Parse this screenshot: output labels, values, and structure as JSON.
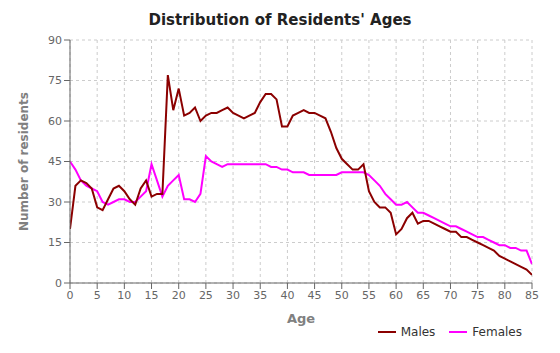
{
  "chart_data": {
    "type": "line",
    "title": "Distribution of Residents' Ages",
    "x_label": "Age",
    "y_label": "Number of residents",
    "x": [
      0,
      1,
      2,
      3,
      4,
      5,
      6,
      7,
      8,
      9,
      10,
      11,
      12,
      13,
      14,
      15,
      16,
      17,
      18,
      19,
      20,
      21,
      22,
      23,
      24,
      25,
      26,
      27,
      28,
      29,
      30,
      31,
      32,
      33,
      34,
      35,
      36,
      37,
      38,
      39,
      40,
      41,
      42,
      43,
      44,
      45,
      46,
      47,
      48,
      49,
      50,
      51,
      52,
      53,
      54,
      55,
      56,
      57,
      58,
      59,
      60,
      61,
      62,
      63,
      64,
      65,
      66,
      67,
      68,
      69,
      70,
      71,
      72,
      73,
      74,
      75,
      76,
      77,
      78,
      79,
      80,
      81,
      82,
      83,
      84,
      85
    ],
    "series": [
      {
        "name": "Males",
        "color": "#8B0000",
        "values": [
          20,
          36,
          38,
          37,
          35,
          28,
          27,
          31,
          35,
          36,
          34,
          31,
          29,
          35,
          38,
          32,
          33,
          33,
          77,
          64,
          72,
          62,
          63,
          65,
          60,
          62,
          63,
          63,
          64,
          65,
          63,
          62,
          61,
          62,
          63,
          67,
          70,
          70,
          68,
          58,
          58,
          62,
          63,
          64,
          63,
          63,
          62,
          61,
          56,
          50,
          46,
          44,
          42,
          42,
          44,
          34,
          30,
          28,
          28,
          26,
          18,
          20,
          24,
          26,
          22,
          23,
          23,
          22,
          21,
          20,
          19,
          19,
          17,
          17,
          16,
          15,
          14,
          13,
          12,
          10,
          9,
          8,
          7,
          6,
          5,
          3
        ]
      },
      {
        "name": "Females",
        "color": "#FF00FF",
        "values": [
          45,
          42,
          38,
          36,
          35,
          34,
          30,
          29,
          30,
          31,
          31,
          30,
          30,
          32,
          34,
          44,
          38,
          32,
          36,
          38,
          40,
          31,
          31,
          30,
          33,
          47,
          45,
          44,
          43,
          44,
          44,
          44,
          44,
          44,
          44,
          44,
          44,
          43,
          43,
          42,
          42,
          41,
          41,
          41,
          40,
          40,
          40,
          40,
          40,
          40,
          41,
          41,
          41,
          41,
          41,
          40,
          38,
          36,
          33,
          31,
          29,
          29,
          30,
          28,
          26,
          26,
          25,
          24,
          23,
          22,
          21,
          21,
          20,
          19,
          18,
          17,
          17,
          16,
          15,
          14,
          14,
          13,
          13,
          12,
          12,
          7
        ]
      }
    ],
    "xlim": [
      0,
      85
    ],
    "xticks": [
      0,
      5,
      10,
      15,
      20,
      25,
      30,
      35,
      40,
      45,
      50,
      55,
      60,
      65,
      70,
      75,
      80,
      85
    ],
    "ylim": [
      0,
      90
    ],
    "yticks": [
      0,
      15,
      30,
      45,
      60,
      75,
      90
    ],
    "grid": true,
    "legend": "lower right"
  }
}
